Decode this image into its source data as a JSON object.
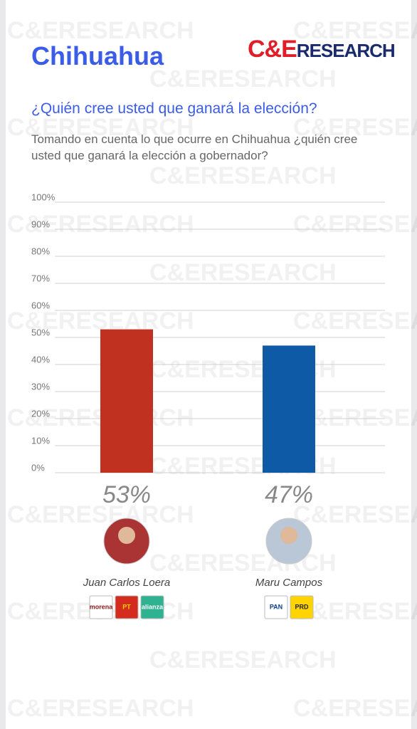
{
  "brand": {
    "left": "C&E",
    "right": "RESEARCH"
  },
  "watermark": "C&ERESEARCH",
  "chart_data": {
    "type": "bar",
    "title": "Chihuahua",
    "question": "¿Quién cree usted que ganará la elección?",
    "subtitle": "Tomando en cuenta lo que ocurre en Chihuahua ¿quién cree usted que ganará la elección a gobernador?",
    "categories": [
      "Juan Carlos Loera",
      "Maru Campos"
    ],
    "values": [
      53,
      47
    ],
    "value_labels": [
      "53%",
      "47%"
    ],
    "colors": [
      "#c0311f",
      "#0f5aa6"
    ],
    "parties": [
      [
        "morena",
        "PT",
        "alianza"
      ],
      [
        "PAN",
        "PRD"
      ]
    ],
    "ylim": [
      0,
      100
    ],
    "yticks": [
      {
        "value": 0,
        "label": "0%"
      },
      {
        "value": 10,
        "label": "10%"
      },
      {
        "value": 20,
        "label": "20%"
      },
      {
        "value": 30,
        "label": "30%"
      },
      {
        "value": 40,
        "label": "40%"
      },
      {
        "value": 50,
        "label": "50%"
      },
      {
        "value": 60,
        "label": "60%"
      },
      {
        "value": 70,
        "label": "70%"
      },
      {
        "value": 80,
        "label": "80%"
      },
      {
        "value": 90,
        "label": "90%"
      },
      {
        "value": 100,
        "label": "100%"
      }
    ],
    "grid": true
  }
}
